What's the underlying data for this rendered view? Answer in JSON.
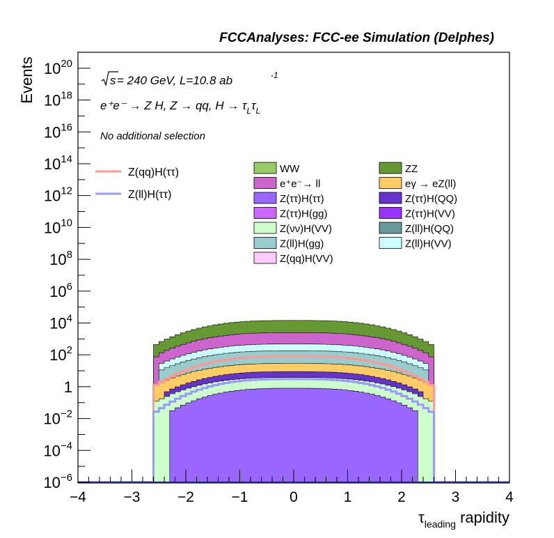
{
  "header": {
    "title": "FCCAnalyses: FCC-ee Simulation (Delphes)"
  },
  "annotations": {
    "sqrt_s": "s",
    "energy_lumi": " = 240 GeV, L=10.8 ab",
    "lumi_exponent": "-1",
    "process": "e⁺e⁻ → Z H, Z → qq, H → τ",
    "process_sub1": "L",
    "process_tau2": "τ",
    "process_sub2": "L",
    "selection": "No additional selection"
  },
  "legend": {
    "signal": [
      {
        "label": "Z(qq)H(ττ)",
        "color": "#ff9999"
      },
      {
        "label": "Z(ll)H(ττ)",
        "color": "#9999ff"
      }
    ],
    "backgrounds": [
      {
        "label": "WW",
        "color": "#99cc66"
      },
      {
        "label": "ZZ",
        "color": "#669933"
      },
      {
        "label": "e⁺e⁻→ ll",
        "color": "#cc66cc"
      },
      {
        "label": "eγ → eZ(ll)",
        "color": "#ffcc66"
      },
      {
        "label": "Z(ττ)H(ττ)",
        "color": "#9966ff"
      },
      {
        "label": "Z(ττ)H(QQ)",
        "color": "#6633cc"
      },
      {
        "label": "Z(ττ)H(gg)",
        "color": "#cc66ff"
      },
      {
        "label": "Z(ττ)H(VV)",
        "color": "#9933ff"
      },
      {
        "label": "Z(νν)H(VV)",
        "color": "#ccffcc"
      },
      {
        "label": "Z(ll)H(QQ)",
        "color": "#669999"
      },
      {
        "label": "Z(ll)H(gg)",
        "color": "#99cccc"
      },
      {
        "label": "Z(ll)H(VV)",
        "color": "#ccffff"
      },
      {
        "label": "Z(qq)H(VV)",
        "color": "#ffccff"
      }
    ]
  },
  "chart_data": {
    "type": "area",
    "title": "FCCAnalyses: FCC-ee Simulation (Delphes)",
    "xlabel": "τ_leading rapidity",
    "xlabel_main": "τ",
    "xlabel_sub": "leading",
    "xlabel_rest": " rapidity",
    "ylabel": "Events",
    "xlim": [
      -4,
      4
    ],
    "ylim": [
      1e-06,
      1e+21
    ],
    "log_y": true,
    "x_ticks": [
      -4,
      -3,
      -2,
      -1,
      0,
      1,
      2,
      3,
      4
    ],
    "y_ticks": [
      {
        "value": 1e-06,
        "base": "10",
        "exp": "−6"
      },
      {
        "value": 0.0001,
        "base": "10",
        "exp": "−4"
      },
      {
        "value": 0.01,
        "base": "10",
        "exp": "−2"
      },
      {
        "value": 1,
        "base": "1",
        "exp": ""
      },
      {
        "value": 100.0,
        "base": "10",
        "exp": "2"
      },
      {
        "value": 10000.0,
        "base": "10",
        "exp": "4"
      },
      {
        "value": 1000000.0,
        "base": "10",
        "exp": "6"
      },
      {
        "value": 100000000.0,
        "base": "10",
        "exp": "8"
      },
      {
        "value": 10000000000.0,
        "base": "10",
        "exp": "10"
      },
      {
        "value": 1000000000000.0,
        "base": "10",
        "exp": "12"
      },
      {
        "value": 100000000000000.0,
        "base": "10",
        "exp": "14"
      },
      {
        "value": 1e+16,
        "base": "10",
        "exp": "16"
      },
      {
        "value": 1e+18,
        "base": "10",
        "exp": "18"
      },
      {
        "value": 1e+20,
        "base": "10",
        "exp": "20"
      }
    ],
    "stack_layers": [
      {
        "name": "Z(ττ)H(ττ)",
        "color": "#9966ff",
        "peak": 0.8,
        "edge": 0.02,
        "start": -2.3,
        "end": 2.35
      },
      {
        "name": "Z(νν)H(VV)",
        "color": "#ccffcc",
        "peak": 3,
        "edge": 0.1,
        "start": -2.6,
        "end": 2.6
      },
      {
        "name": "Z(ττ)H(QQ)",
        "color": "#6633cc",
        "peak": 5,
        "edge": 0.2,
        "start": -2.4,
        "end": 2.4
      },
      {
        "name": "eγ → eZ(ll)",
        "color": "#ffcc66",
        "peak": 20,
        "edge": 1,
        "start": -2.6,
        "end": 2.6
      },
      {
        "name": "Z(ll)H(gg)",
        "color": "#99cccc",
        "peak": 150,
        "edge": 8,
        "start": -2.5,
        "end": 2.5
      },
      {
        "name": "Z(ll)H(VV)",
        "color": "#ccffff",
        "peak": 300,
        "edge": 15,
        "start": -2.5,
        "end": 2.5
      },
      {
        "name": "e⁺e⁻→ ll",
        "color": "#cc66cc",
        "peak": 2000,
        "edge": 60,
        "start": -2.6,
        "end": 2.6
      },
      {
        "name": "ZZ",
        "color": "#669933",
        "peak": 12000,
        "edge": 300,
        "start": -2.6,
        "end": 2.6
      }
    ],
    "series": [
      {
        "name": "Z(qq)H(ττ)",
        "color": "#ff9999",
        "peak": 80,
        "edge": 1,
        "start": -2.6,
        "end": 2.6
      },
      {
        "name": "Z(ll)H(ττ)",
        "color": "#9999ff",
        "peak": 3,
        "edge": 0.02,
        "start": -2.6,
        "end": 2.6
      }
    ]
  }
}
